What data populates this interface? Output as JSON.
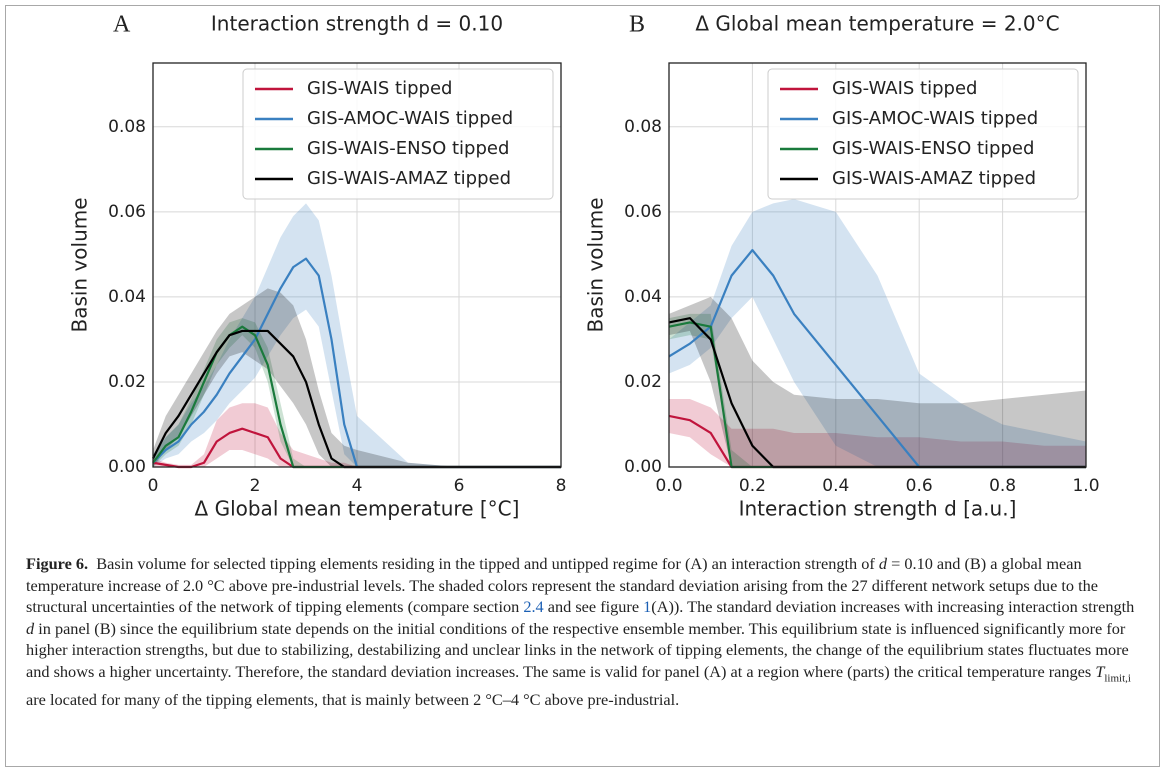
{
  "chart_data": [
    {
      "type": "line",
      "panel_label": "A",
      "title": "Interaction strength d = 0.10",
      "xlabel": "Δ Global mean temperature [°C]",
      "ylabel": "Basin volume",
      "xlim": [
        0,
        8
      ],
      "ylim": [
        0,
        0.095
      ],
      "xticks": [
        0,
        2,
        4,
        6,
        8
      ],
      "yticks": [
        {
          "value": 0,
          "label": "0.00"
        },
        0.02,
        0.04,
        0.06,
        0.08
      ],
      "grid": true,
      "legend": "upper-right",
      "x": [
        0,
        0.25,
        0.5,
        0.75,
        1,
        1.25,
        1.5,
        1.75,
        2,
        2.25,
        2.5,
        2.75,
        3,
        3.25,
        3.5,
        3.75,
        4,
        5,
        6,
        7,
        8
      ],
      "series": [
        {
          "name": "GIS-WAIS tipped",
          "color": "#c0143c",
          "values": [
            0.001,
            0.0005,
            0,
            0,
            0.001,
            0.006,
            0.008,
            0.009,
            0.008,
            0.007,
            0.002,
            0,
            0,
            0,
            0,
            0,
            0,
            0,
            0,
            0,
            0
          ],
          "upper": [
            0.002,
            0.001,
            0.0005,
            0.0005,
            0.003,
            0.011,
            0.014,
            0.015,
            0.015,
            0.014,
            0.008,
            0.004,
            0.003,
            0.002,
            0.001,
            0.001,
            0,
            0,
            0,
            0,
            0
          ],
          "lower": [
            0,
            0,
            0,
            0,
            0,
            0.002,
            0.004,
            0.004,
            0.003,
            0.002,
            0,
            0,
            0,
            0,
            0,
            0,
            0,
            0,
            0,
            0,
            0
          ]
        },
        {
          "name": "GIS-AMOC-WAIS tipped",
          "color": "#3a80c0",
          "values": [
            0.001,
            0.004,
            0.006,
            0.01,
            0.013,
            0.017,
            0.022,
            0.026,
            0.03,
            0.036,
            0.042,
            0.047,
            0.049,
            0.045,
            0.03,
            0.01,
            0,
            0,
            0,
            0,
            0
          ],
          "upper": [
            0.003,
            0.007,
            0.01,
            0.015,
            0.019,
            0.024,
            0.03,
            0.035,
            0.04,
            0.047,
            0.054,
            0.059,
            0.062,
            0.058,
            0.045,
            0.028,
            0.012,
            0.001,
            0,
            0,
            0
          ],
          "lower": [
            0,
            0.002,
            0.003,
            0.006,
            0.008,
            0.011,
            0.015,
            0.018,
            0.021,
            0.026,
            0.031,
            0.035,
            0.037,
            0.033,
            0.018,
            0.003,
            0,
            0,
            0,
            0,
            0
          ]
        },
        {
          "name": "GIS-WAIS-ENSO tipped",
          "color": "#1a7a3c",
          "values": [
            0.001,
            0.005,
            0.007,
            0.013,
            0.02,
            0.027,
            0.031,
            0.033,
            0.031,
            0.024,
            0.01,
            0,
            0,
            0,
            0,
            0,
            0,
            0,
            0,
            0,
            0
          ],
          "upper": [
            0.002,
            0.007,
            0.01,
            0.016,
            0.023,
            0.03,
            0.034,
            0.035,
            0.034,
            0.028,
            0.015,
            0.002,
            0,
            0,
            0,
            0,
            0,
            0,
            0,
            0,
            0
          ],
          "lower": [
            0,
            0.003,
            0.005,
            0.01,
            0.017,
            0.024,
            0.028,
            0.031,
            0.028,
            0.02,
            0.006,
            0,
            0,
            0,
            0,
            0,
            0,
            0,
            0,
            0,
            0
          ]
        },
        {
          "name": "GIS-WAIS-AMAZ tipped",
          "color": "#000000",
          "values": [
            0.002,
            0.008,
            0.012,
            0.017,
            0.022,
            0.027,
            0.031,
            0.032,
            0.032,
            0.032,
            0.029,
            0.026,
            0.02,
            0.01,
            0.002,
            0,
            0,
            0,
            0,
            0,
            0
          ],
          "upper": [
            0.004,
            0.012,
            0.017,
            0.022,
            0.027,
            0.032,
            0.036,
            0.038,
            0.04,
            0.042,
            0.041,
            0.038,
            0.03,
            0.018,
            0.008,
            0.005,
            0.004,
            0.001,
            0,
            0,
            0
          ],
          "lower": [
            0,
            0.004,
            0.007,
            0.012,
            0.017,
            0.022,
            0.026,
            0.027,
            0.025,
            0.023,
            0.019,
            0.015,
            0.01,
            0.003,
            0,
            0,
            0,
            0,
            0,
            0,
            0
          ]
        }
      ]
    },
    {
      "type": "line",
      "panel_label": "B",
      "title": "Δ Global mean temperature = 2.0°C",
      "xlabel": "Interaction strength d [a.u.]",
      "ylabel": "Basin volume",
      "xlim": [
        0,
        1
      ],
      "ylim": [
        0,
        0.095
      ],
      "xticks": [
        {
          "value": 0,
          "label": "0.0"
        },
        0.2,
        0.4,
        0.6,
        0.8,
        {
          "value": 1,
          "label": "1.0"
        }
      ],
      "yticks": [
        {
          "value": 0,
          "label": "0.00"
        },
        0.02,
        0.04,
        0.06,
        0.08
      ],
      "grid": true,
      "legend": "upper-right",
      "x": [
        0,
        0.05,
        0.1,
        0.15,
        0.2,
        0.25,
        0.3,
        0.4,
        0.5,
        0.6,
        0.7,
        0.8,
        0.9,
        1
      ],
      "series": [
        {
          "name": "GIS-WAIS tipped",
          "color": "#c0143c",
          "values": [
            0.012,
            0.011,
            0.008,
            0,
            0,
            0,
            0,
            0,
            0,
            0,
            0,
            0,
            0,
            0
          ],
          "upper": [
            0.016,
            0.016,
            0.014,
            0.009,
            0.009,
            0.009,
            0.008,
            0.008,
            0.007,
            0.007,
            0.006,
            0.006,
            0.005,
            0.005
          ],
          "lower": [
            0.008,
            0.007,
            0.003,
            0,
            0,
            0,
            0,
            0,
            0,
            0,
            0,
            0,
            0,
            0
          ]
        },
        {
          "name": "GIS-AMOC-WAIS tipped",
          "color": "#3a80c0",
          "values": [
            0.026,
            0.029,
            0.033,
            0.045,
            0.051,
            0.045,
            0.036,
            0.024,
            0.012,
            0,
            0,
            0,
            0,
            0
          ],
          "upper": [
            0.03,
            0.034,
            0.038,
            0.052,
            0.06,
            0.062,
            0.063,
            0.06,
            0.045,
            0.022,
            0.015,
            0.01,
            0.008,
            0.006
          ],
          "lower": [
            0.022,
            0.024,
            0.028,
            0.035,
            0.04,
            0.03,
            0.02,
            0.005,
            0,
            0,
            0,
            0,
            0,
            0
          ]
        },
        {
          "name": "GIS-WAIS-ENSO tipped",
          "color": "#1a7a3c",
          "values": [
            0.033,
            0.034,
            0.033,
            0,
            0,
            0,
            0,
            0,
            0,
            0,
            0,
            0,
            0,
            0
          ],
          "upper": [
            0.035,
            0.036,
            0.036,
            0.004,
            0,
            0,
            0,
            0,
            0,
            0,
            0,
            0,
            0,
            0
          ],
          "lower": [
            0.03,
            0.031,
            0.03,
            0,
            0,
            0,
            0,
            0,
            0,
            0,
            0,
            0,
            0,
            0
          ]
        },
        {
          "name": "GIS-WAIS-AMAZ tipped",
          "color": "#000000",
          "values": [
            0.034,
            0.035,
            0.03,
            0.015,
            0.005,
            0,
            0,
            0,
            0,
            0,
            0,
            0,
            0,
            0
          ],
          "upper": [
            0.036,
            0.038,
            0.04,
            0.035,
            0.025,
            0.02,
            0.017,
            0.016,
            0.016,
            0.015,
            0.015,
            0.016,
            0.017,
            0.018
          ],
          "lower": [
            0.031,
            0.032,
            0.02,
            0,
            0,
            0,
            0,
            0,
            0,
            0,
            0,
            0,
            0,
            0
          ]
        }
      ]
    }
  ],
  "caption": {
    "segments": [
      {
        "text": "Figure 6.",
        "style": "bold"
      },
      {
        "text": "  Basin volume for selected tipping elements residing in the tipped and untipped regime for (A) an interaction strength of "
      },
      {
        "text": "d",
        "style": "italic"
      },
      {
        "text": " = 0.10 and (B) a global mean temperature increase of 2.0 °C above pre-industrial levels. The shaded colors represent the standard deviation arising from the 27 different network setups due to the structural uncertainties of the network of tipping elements (compare section "
      },
      {
        "text": "2.4",
        "style": "link"
      },
      {
        "text": " and see figure "
      },
      {
        "text": "1",
        "style": "link"
      },
      {
        "text": "(A)). The standard deviation increases with increasing interaction strength "
      },
      {
        "text": "d",
        "style": "italic"
      },
      {
        "text": " in panel (B) since the equilibrium state depends on the initial conditions of the respective ensemble member. This equilibrium state is influenced significantly more for higher interaction strengths, but due to stabilizing, destabilizing and unclear links in the network of tipping elements, the change of the equilibrium states fluctuates more and shows a higher uncertainty. Therefore, the standard deviation increases. The same is valid for panel (A) at a region where (parts) the critical temperature ranges "
      },
      {
        "text": "T",
        "style": "italic"
      },
      {
        "text": "limit,i",
        "style": "sub"
      },
      {
        "text": " are located for many of the tipping elements, that is mainly between 2 °C–4 °C above pre-industrial."
      }
    ]
  }
}
